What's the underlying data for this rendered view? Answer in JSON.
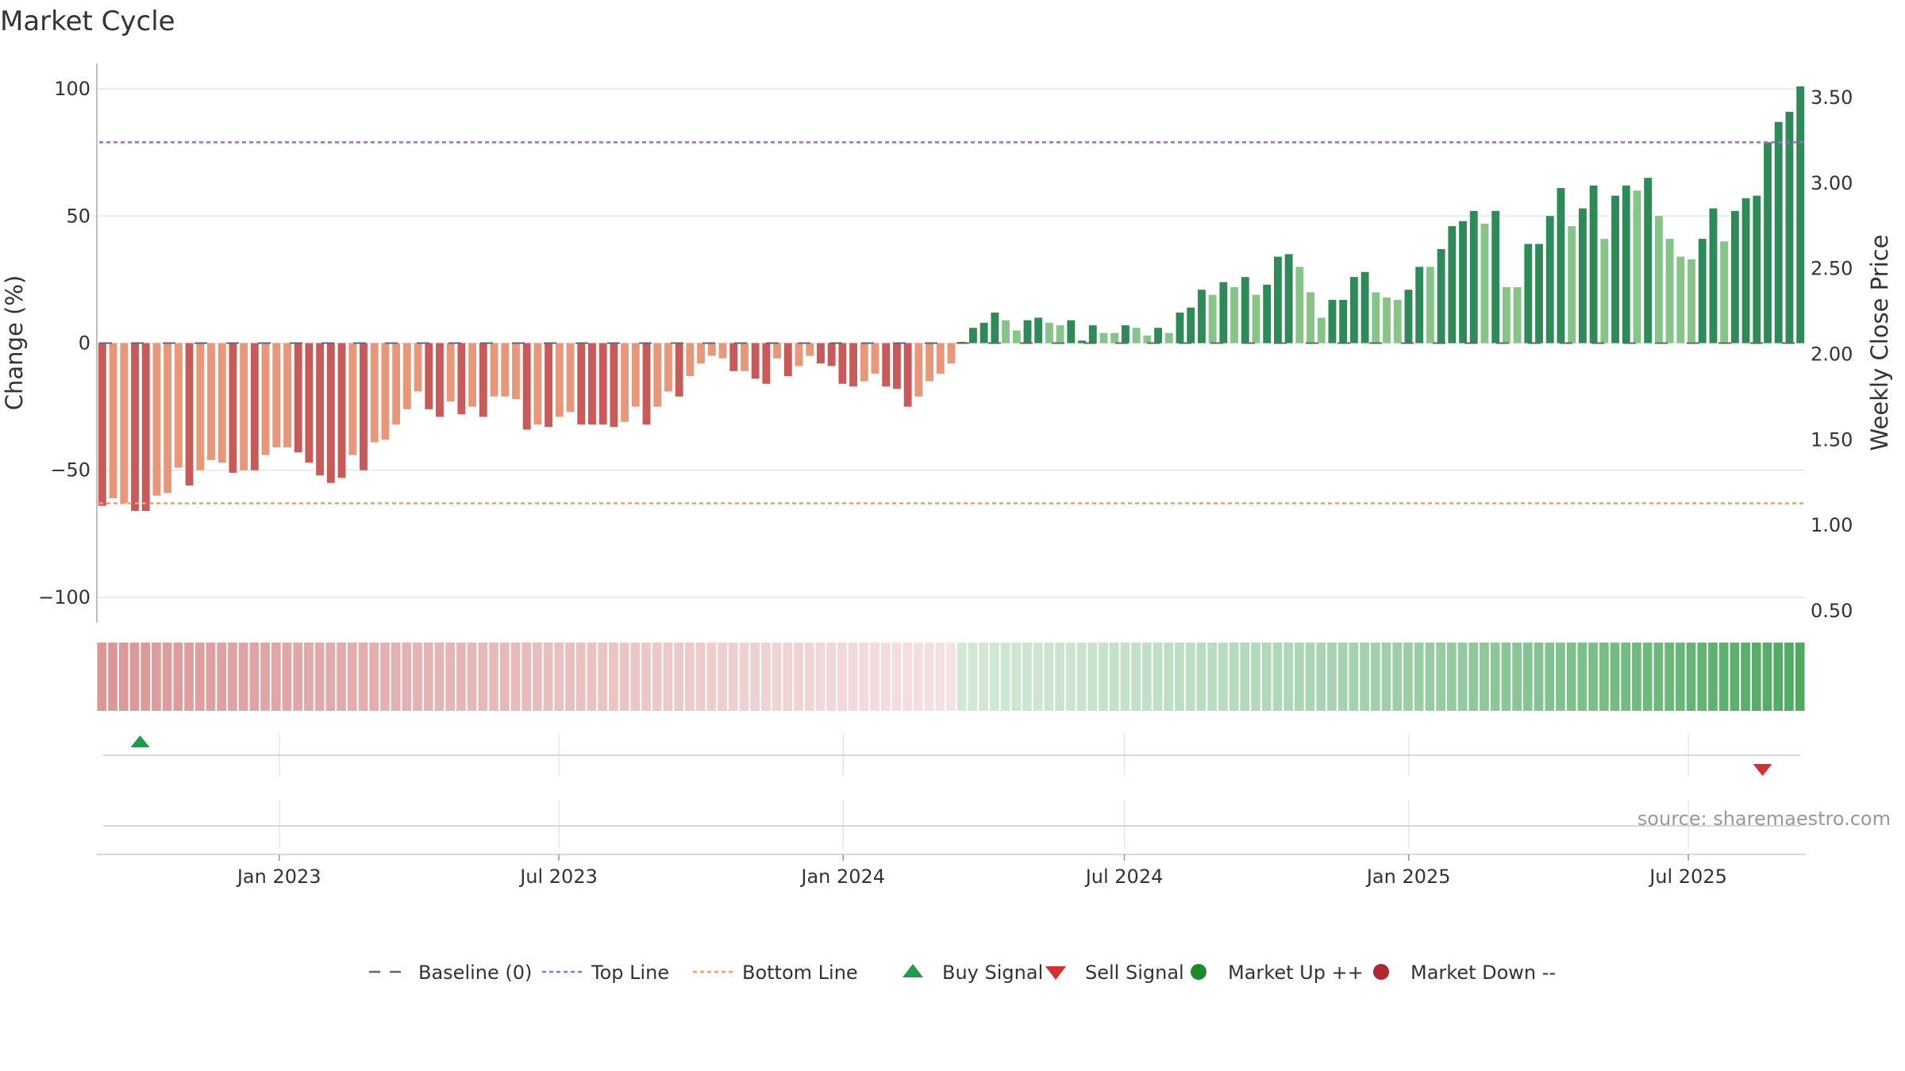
{
  "chart_data": {
    "type": "bar",
    "title": "Market Cycle",
    "ylabel": "Change (%)",
    "y2label": "Weekly Close Price",
    "ylim": [
      -110,
      110
    ],
    "y2lim": [
      0.43,
      3.7
    ],
    "yticks": [
      100,
      50,
      0,
      -50,
      -100
    ],
    "y2ticks": [
      "3.50",
      "3.00",
      "2.50",
      "2.00",
      "1.50",
      "1.00",
      "0.50"
    ],
    "y2tick_values": [
      3.5,
      3.0,
      2.5,
      2.0,
      1.5,
      1.0,
      0.5
    ],
    "x_start": "2022-09-05",
    "x_end": "2025-09-15",
    "x_ticks": [
      {
        "label": "Jan 2023",
        "date": "2023-01-01"
      },
      {
        "label": "Jul 2023",
        "date": "2023-07-01"
      },
      {
        "label": "Jan 2024",
        "date": "2024-01-01"
      },
      {
        "label": "Jul 2024",
        "date": "2024-07-01"
      },
      {
        "label": "Jan 2025",
        "date": "2025-01-01"
      },
      {
        "label": "Jul 2025",
        "date": "2025-07-01"
      }
    ],
    "weekly_start": "2022-09-05",
    "values": [
      -64,
      -61,
      -63,
      -66,
      -66,
      -60,
      -59,
      -49,
      -56,
      -50,
      -46,
      -47,
      -51,
      -50,
      -50,
      -44,
      -41,
      -41,
      -43,
      -47,
      -52,
      -55,
      -53,
      -44,
      -50,
      -39,
      -38,
      -32,
      -26,
      -19,
      -26,
      -29,
      -23,
      -28,
      -25,
      -29,
      -21,
      -21,
      -22,
      -34,
      -32,
      -33,
      -29,
      -27,
      -32,
      -32,
      -32,
      -33,
      -31,
      -25,
      -32,
      -25,
      -19,
      -21,
      -13,
      -8,
      -5,
      -6,
      -11,
      -11,
      -14,
      -16,
      -6,
      -13,
      -9,
      -5,
      -8,
      -9,
      -16,
      -17,
      -15,
      -12,
      -17,
      -18,
      -25,
      -21,
      -15,
      -12,
      -8,
      0.5,
      6,
      8,
      12,
      9,
      5,
      9,
      10,
      8,
      7,
      9,
      1,
      7,
      4,
      4,
      7,
      6,
      3,
      6,
      4,
      12,
      14,
      21,
      19,
      24,
      22,
      26,
      19,
      23,
      34,
      35,
      30,
      20,
      10,
      17,
      17,
      26,
      28,
      20,
      18,
      17,
      21,
      30,
      30,
      37,
      46,
      48,
      52,
      47,
      52,
      22,
      22,
      39,
      39,
      50,
      61,
      46,
      53,
      62,
      41,
      58,
      62,
      60,
      65,
      50,
      41,
      34,
      33,
      41,
      53,
      40,
      52,
      57,
      58,
      79,
      87,
      91,
      101
    ],
    "levels": [
      -3,
      -2,
      -2,
      -3,
      -3,
      -2,
      -2,
      -2,
      -3,
      -2,
      -2,
      -2,
      -3,
      -2,
      -3,
      -2,
      -2,
      -2,
      -3,
      -3,
      -3,
      -3,
      -3,
      -2,
      -3,
      -2,
      -2,
      -2,
      -2,
      -2,
      -3,
      -3,
      -2,
      -3,
      -2,
      -3,
      -2,
      -2,
      -2,
      -3,
      -2,
      -3,
      -2,
      -2,
      -3,
      -3,
      -3,
      -3,
      -2,
      -2,
      -3,
      -2,
      -2,
      -3,
      -2,
      -2,
      -2,
      -2,
      -3,
      -2,
      -3,
      -3,
      -2,
      -3,
      -2,
      -2,
      -3,
      -3,
      -3,
      -3,
      -2,
      -2,
      -3,
      -3,
      -3,
      -2,
      -2,
      -2,
      -2,
      3,
      3,
      3,
      3,
      2,
      2,
      3,
      3,
      2,
      2,
      3,
      3,
      3,
      2,
      2,
      3,
      2,
      2,
      3,
      2,
      3,
      3,
      3,
      2,
      3,
      2,
      3,
      2,
      3,
      3,
      3,
      2,
      2,
      2,
      3,
      3,
      3,
      3,
      2,
      2,
      2,
      3,
      3,
      2,
      3,
      3,
      3,
      3,
      2,
      3,
      2,
      2,
      3,
      3,
      3,
      3,
      2,
      3,
      3,
      2,
      3,
      3,
      2,
      3,
      2,
      2,
      2,
      2,
      3,
      3,
      2,
      3,
      3,
      3,
      3,
      3,
      3,
      3
    ],
    "series": [
      {
        "name": "Baseline (0)",
        "value": 0,
        "color": "#666666",
        "style": "dashed"
      },
      {
        "name": "Top Line",
        "value": 79,
        "color": "#9b6fcf",
        "style": "dotted"
      },
      {
        "name": "Bottom Line",
        "value": -63,
        "color": "#f0a060",
        "style": "dotted"
      }
    ],
    "signals": [
      {
        "type": "Buy Signal",
        "date": "2022-10-03"
      },
      {
        "type": "Sell Signal",
        "date": "2025-08-18"
      }
    ],
    "legend_placement": "bottom-center",
    "grid": true
  },
  "legend": {
    "items": [
      {
        "label": "Baseline (0)",
        "marker": "dashed-line",
        "color": "#666666"
      },
      {
        "label": "Top Line",
        "marker": "dotted-line",
        "color": "#9b6fcf"
      },
      {
        "label": "Bottom Line",
        "marker": "dotted-line",
        "color": "#f0a060"
      },
      {
        "label": "Buy Signal",
        "marker": "triangle-up",
        "color": "#1a9e4a"
      },
      {
        "label": "Sell Signal",
        "marker": "triangle-down",
        "color": "#d62f2f"
      },
      {
        "label": "Market Up ++",
        "marker": "circle",
        "color": "#1f8a2a"
      },
      {
        "label": "Market Down --",
        "marker": "circle",
        "color": "#b22830"
      }
    ]
  },
  "colors": {
    "down_strong": "#c85a5a",
    "down_weak": "#e8977a",
    "up_strong": "#2e8b57",
    "up_weak": "#86c587"
  },
  "source": "source: sharemaestro.com"
}
